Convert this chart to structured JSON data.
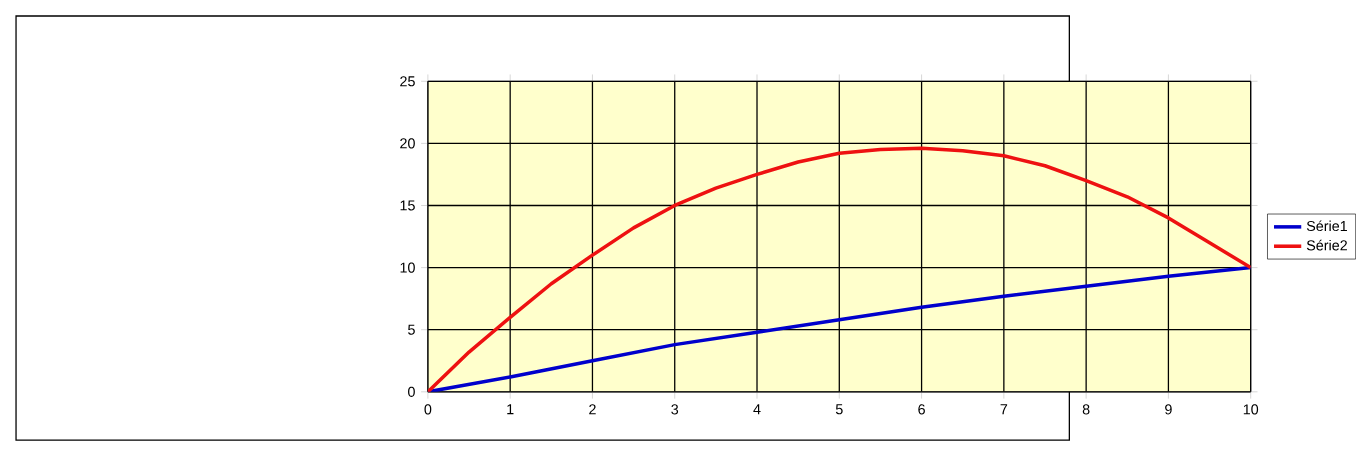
{
  "chart_data": {
    "type": "line",
    "xlim": [
      0,
      10
    ],
    "xticks": [
      0,
      1,
      2,
      3,
      4,
      5,
      6,
      7,
      8,
      9,
      10
    ],
    "ylim": [
      0,
      25
    ],
    "yticks": [
      0,
      5,
      10,
      15,
      20,
      25
    ],
    "grid": true,
    "legend": "right",
    "marker": "none",
    "line_style": "solid",
    "series": [
      {
        "name": "Série1",
        "color": "#0000cc",
        "x": [
          0,
          1,
          2,
          3,
          4,
          5,
          6,
          7,
          8,
          9,
          10
        ],
        "values": [
          0,
          1.2,
          2.5,
          3.8,
          4.8,
          5.8,
          6.8,
          7.7,
          8.5,
          9.3,
          10
        ]
      },
      {
        "name": "Série2",
        "color": "#ee1111",
        "x": [
          0,
          0.5,
          1,
          1.5,
          2,
          2.5,
          3,
          3.5,
          4,
          4.5,
          5,
          5.5,
          6,
          6.5,
          7,
          7.5,
          8,
          8.5,
          9,
          9.5,
          10
        ],
        "values": [
          0,
          3.2,
          6,
          8.7,
          11,
          13.2,
          15,
          16.4,
          17.5,
          18.5,
          19.2,
          19.5,
          19.6,
          19.4,
          19,
          18.2,
          17,
          15.7,
          14,
          12,
          10
        ]
      }
    ]
  }
}
